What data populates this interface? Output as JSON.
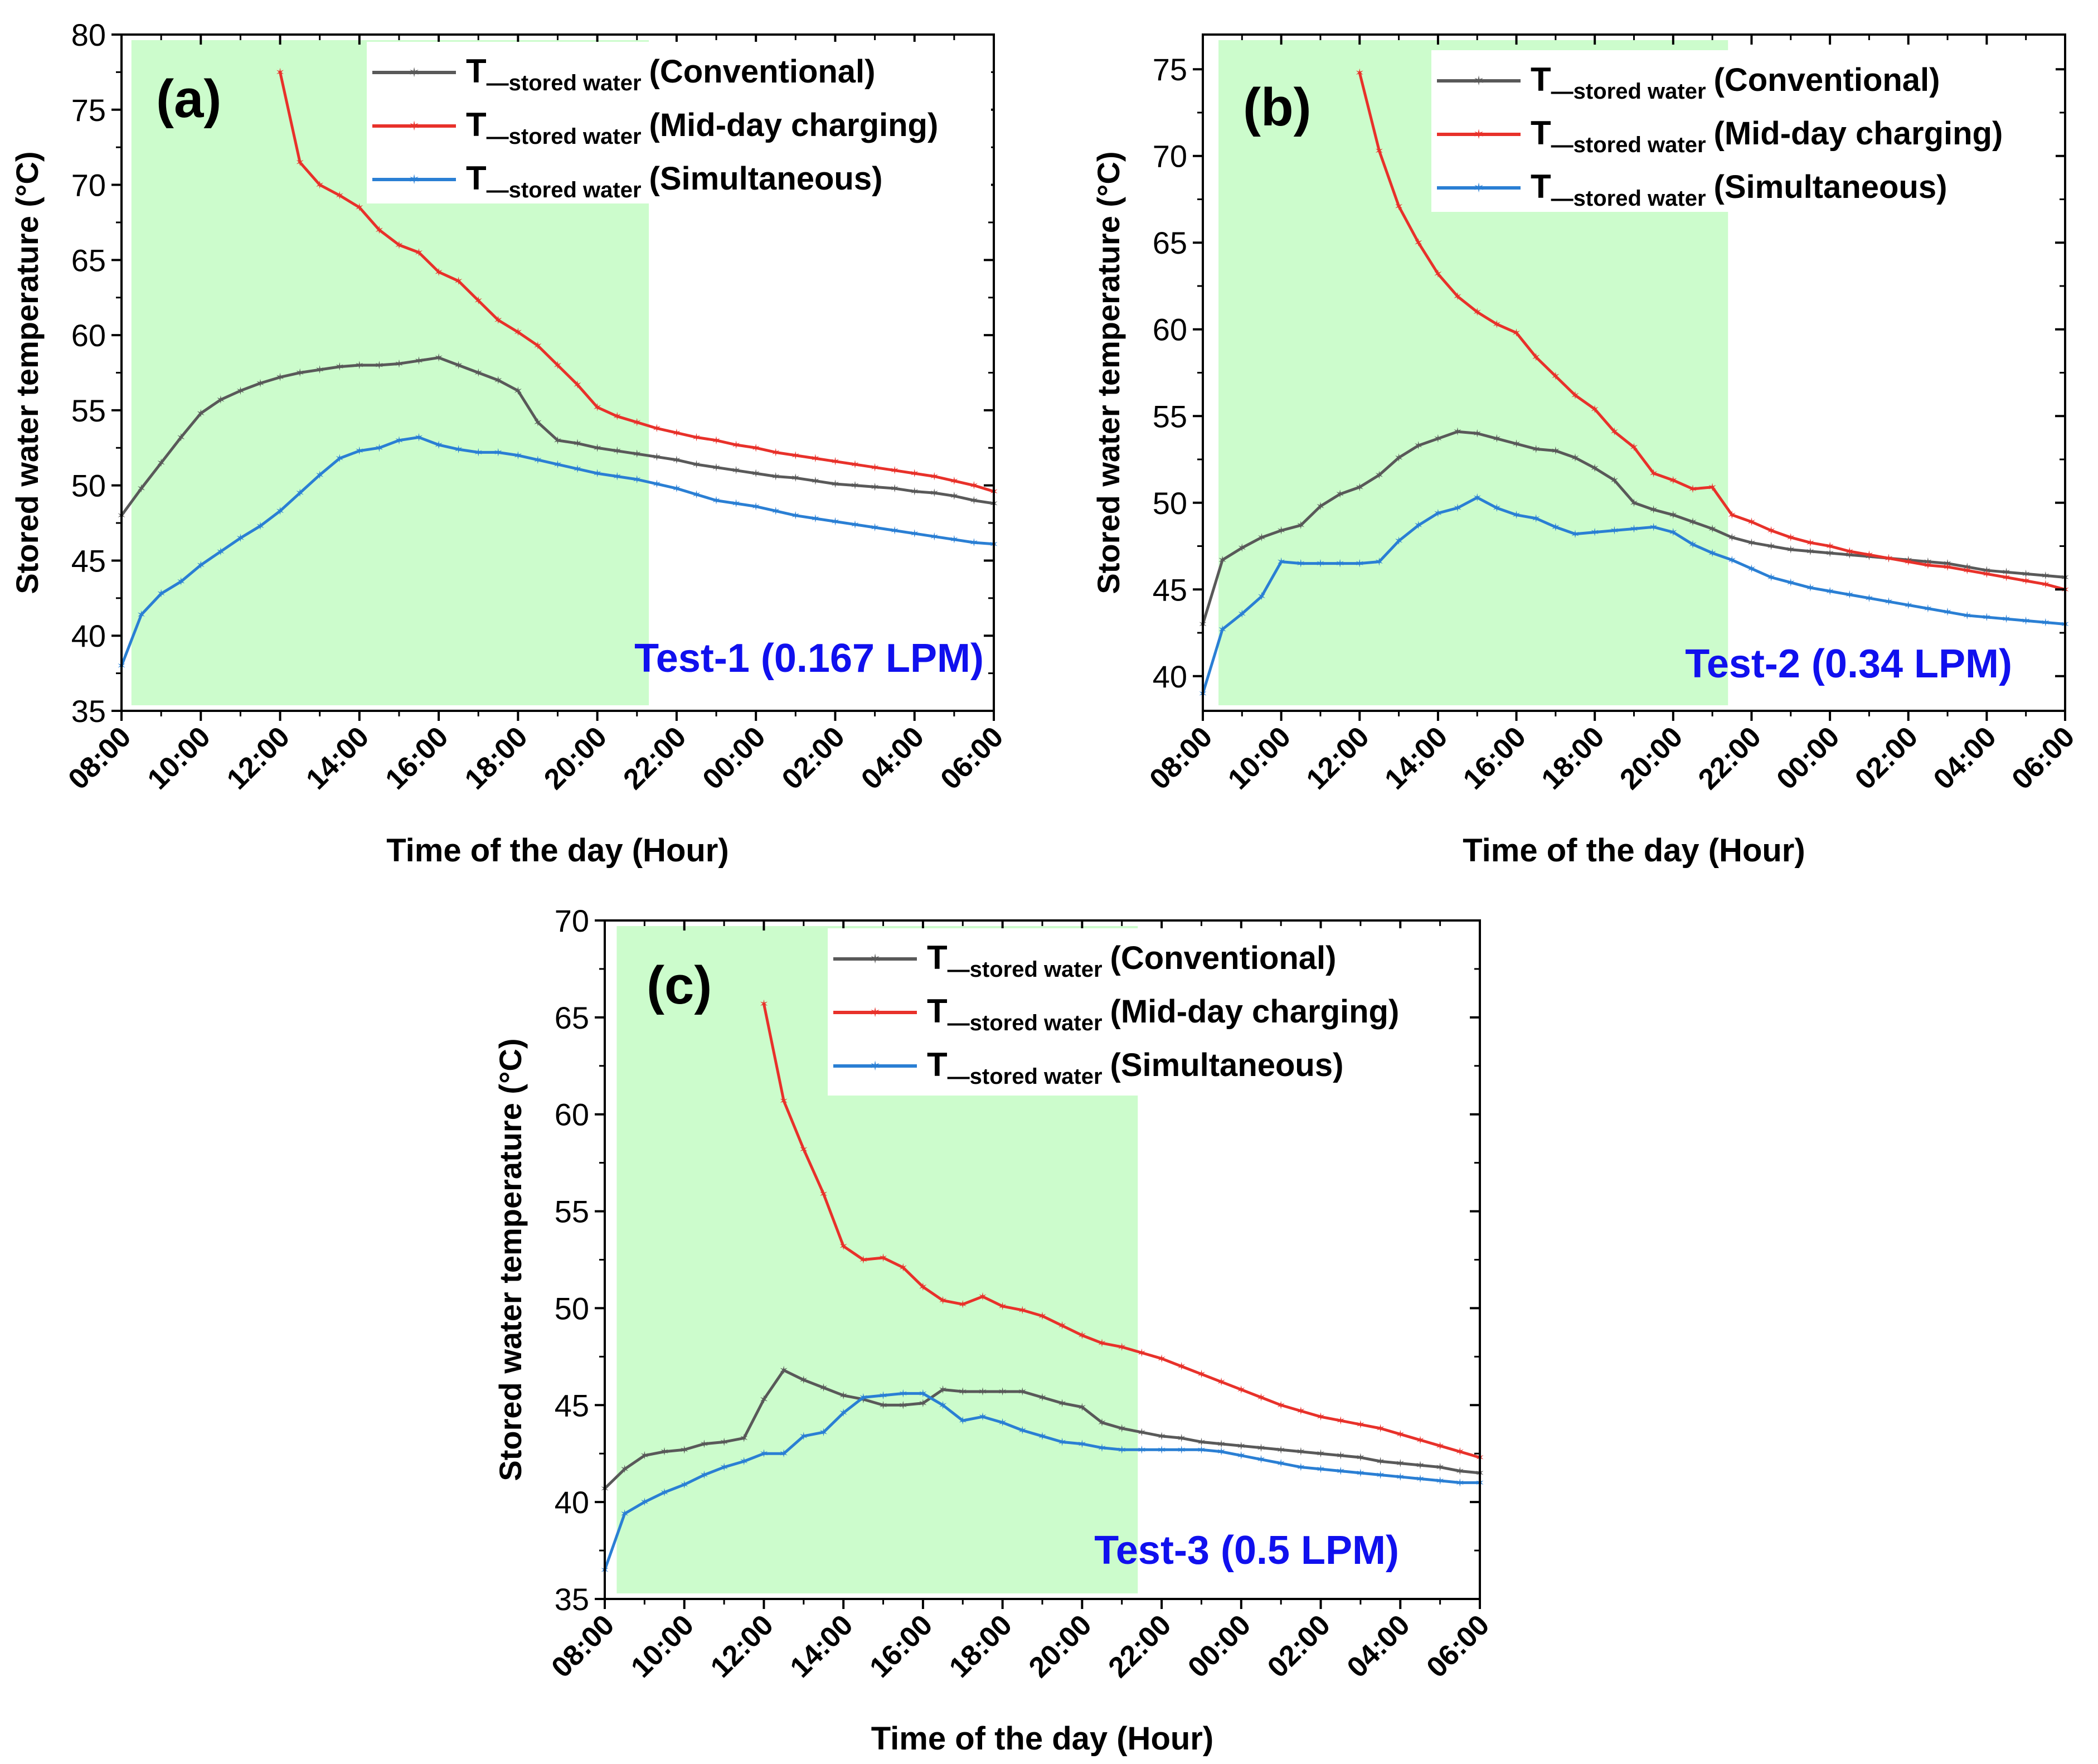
{
  "chart_data": [
    {
      "type": "line",
      "panel_label": "(a)",
      "test_label": "Test-1 (0.167 LPM)",
      "xlabel": "Time of the day (Hour)",
      "ylabel": "Stored water temperature (°C)",
      "ylim": [
        35,
        80
      ],
      "yticks": [
        35,
        40,
        45,
        50,
        55,
        60,
        65,
        70,
        75,
        80
      ],
      "xlim": [
        0,
        22
      ],
      "xtick_labels": [
        "08:00",
        "10:00",
        "12:00",
        "14:00",
        "16:00",
        "18:00",
        "20:00",
        "22:00",
        "00:00",
        "02:00",
        "04:00",
        "06:00"
      ],
      "shaded_region_hours": [
        0.25,
        13.3
      ],
      "series": [
        {
          "name_main": "T",
          "name_sub": "—stored water",
          "name_tail": "(Conventional)",
          "color": "#595959",
          "x": [
            0,
            0.5,
            1,
            1.5,
            2,
            2.5,
            3,
            3.5,
            4,
            4.5,
            5,
            5.5,
            6,
            6.5,
            7,
            7.5,
            8,
            8.5,
            9,
            9.5,
            10,
            10.5,
            11,
            11.5,
            12,
            12.5,
            13,
            13.5,
            14,
            14.5,
            15,
            15.5,
            16,
            16.5,
            17,
            17.5,
            18,
            18.5,
            19,
            19.5,
            20,
            20.5,
            21,
            21.5,
            22
          ],
          "y": [
            48,
            49.8,
            51.5,
            53.2,
            54.8,
            55.7,
            56.3,
            56.8,
            57.2,
            57.5,
            57.7,
            57.9,
            58,
            58,
            58.1,
            58.3,
            58.5,
            58,
            57.5,
            57,
            56.3,
            54.2,
            53,
            52.8,
            52.5,
            52.3,
            52.1,
            51.9,
            51.7,
            51.4,
            51.2,
            51,
            50.8,
            50.6,
            50.5,
            50.3,
            50.1,
            50,
            49.9,
            49.8,
            49.6,
            49.5,
            49.3,
            49,
            48.8
          ]
        },
        {
          "name_main": "T",
          "name_sub": "—stored water",
          "name_tail": "(Mid-day charging)",
          "color": "#e8312a",
          "x": [
            4,
            4.5,
            5,
            5.5,
            6,
            6.5,
            7,
            7.5,
            8,
            8.5,
            9,
            9.5,
            10,
            10.5,
            11,
            11.5,
            12,
            12.5,
            13,
            13.5,
            14,
            14.5,
            15,
            15.5,
            16,
            16.5,
            17,
            17.5,
            18,
            18.5,
            19,
            19.5,
            20,
            20.5,
            21,
            21.5,
            22
          ],
          "y": [
            77.5,
            71.5,
            70,
            69.3,
            68.5,
            67,
            66,
            65.5,
            64.2,
            63.6,
            62.3,
            61,
            60.2,
            59.3,
            58,
            56.7,
            55.2,
            54.6,
            54.2,
            53.8,
            53.5,
            53.2,
            53,
            52.7,
            52.5,
            52.2,
            52,
            51.8,
            51.6,
            51.4,
            51.2,
            51,
            50.8,
            50.6,
            50.3,
            50,
            49.6
          ]
        },
        {
          "name_main": "T",
          "name_sub": "—stored water",
          "name_tail": "(Simultaneous)",
          "color": "#2a7fd4",
          "x": [
            0,
            0.5,
            1,
            1.5,
            2,
            2.5,
            3,
            3.5,
            4,
            4.5,
            5,
            5.5,
            6,
            6.5,
            7,
            7.5,
            8,
            8.5,
            9,
            9.5,
            10,
            10.5,
            11,
            11.5,
            12,
            12.5,
            13,
            13.5,
            14,
            14.5,
            15,
            15.5,
            16,
            16.5,
            17,
            17.5,
            18,
            18.5,
            19,
            19.5,
            20,
            20.5,
            21,
            21.5,
            22
          ],
          "y": [
            38,
            41.4,
            42.8,
            43.6,
            44.7,
            45.6,
            46.5,
            47.3,
            48.3,
            49.5,
            50.7,
            51.8,
            52.3,
            52.5,
            53,
            53.2,
            52.7,
            52.4,
            52.2,
            52.2,
            52,
            51.7,
            51.4,
            51.1,
            50.8,
            50.6,
            50.4,
            50.1,
            49.8,
            49.4,
            49,
            48.8,
            48.6,
            48.3,
            48,
            47.8,
            47.6,
            47.4,
            47.2,
            47,
            46.8,
            46.6,
            46.4,
            46.2,
            46.1
          ]
        }
      ]
    },
    {
      "type": "line",
      "panel_label": "(b)",
      "test_label": "Test-2 (0.34 LPM)",
      "xlabel": "Time of the day (Hour)",
      "ylabel": "Stored water temperature (°C)",
      "ylim": [
        38,
        77
      ],
      "yticks": [
        40,
        45,
        50,
        55,
        60,
        65,
        70,
        75
      ],
      "xlim": [
        0,
        22
      ],
      "xtick_labels": [
        "08:00",
        "10:00",
        "12:00",
        "14:00",
        "16:00",
        "18:00",
        "20:00",
        "22:00",
        "00:00",
        "02:00",
        "04:00",
        "06:00"
      ],
      "shaded_region_hours": [
        0.4,
        13.4
      ],
      "series": [
        {
          "name_main": "T",
          "name_sub": "—stored water",
          "name_tail": "(Conventional)",
          "color": "#595959",
          "x": [
            0,
            0.5,
            1,
            1.5,
            2,
            2.5,
            3,
            3.5,
            4,
            4.5,
            5,
            5.5,
            6,
            6.5,
            7,
            7.5,
            8,
            8.5,
            9,
            9.5,
            10,
            10.5,
            11,
            11.5,
            12,
            12.5,
            13,
            13.5,
            14,
            14.5,
            15,
            15.5,
            16,
            16.5,
            17,
            17.5,
            18,
            18.5,
            19,
            19.5,
            20,
            20.5,
            21,
            21.5,
            22
          ],
          "y": [
            43,
            46.7,
            47.4,
            48,
            48.4,
            48.7,
            49.8,
            50.5,
            50.9,
            51.6,
            52.6,
            53.3,
            53.7,
            54.1,
            54,
            53.7,
            53.4,
            53.1,
            53,
            52.6,
            52,
            51.3,
            50,
            49.6,
            49.3,
            48.9,
            48.5,
            48,
            47.7,
            47.5,
            47.3,
            47.2,
            47.1,
            47,
            46.9,
            46.8,
            46.7,
            46.6,
            46.5,
            46.3,
            46.1,
            46,
            45.9,
            45.8,
            45.7
          ]
        },
        {
          "name_main": "T",
          "name_sub": "—stored water",
          "name_tail": "(Mid-day charging)",
          "color": "#e8312a",
          "x": [
            4,
            4.5,
            5,
            5.5,
            6,
            6.5,
            7,
            7.5,
            8,
            8.5,
            9,
            9.5,
            10,
            10.5,
            11,
            11.5,
            12,
            12.5,
            13,
            13.5,
            14,
            14.5,
            15,
            15.5,
            16,
            16.5,
            17,
            17.5,
            18,
            18.5,
            19,
            19.5,
            20,
            20.5,
            21,
            21.5,
            22
          ],
          "y": [
            74.8,
            70.3,
            67.1,
            65,
            63.2,
            61.9,
            61,
            60.3,
            59.8,
            58.4,
            57.3,
            56.2,
            55.4,
            54.1,
            53.2,
            51.7,
            51.3,
            50.8,
            50.9,
            49.3,
            48.9,
            48.4,
            48,
            47.7,
            47.5,
            47.2,
            47,
            46.8,
            46.6,
            46.4,
            46.3,
            46.1,
            45.9,
            45.7,
            45.5,
            45.3,
            45
          ]
        },
        {
          "name_main": "T",
          "name_sub": "—stored water",
          "name_tail": "(Simultaneous)",
          "color": "#2a7fd4",
          "x": [
            0,
            0.5,
            1,
            1.5,
            2,
            2.5,
            3,
            3.5,
            4,
            4.5,
            5,
            5.5,
            6,
            6.5,
            7,
            7.5,
            8,
            8.5,
            9,
            9.5,
            10,
            10.5,
            11,
            11.5,
            12,
            12.5,
            13,
            13.5,
            14,
            14.5,
            15,
            15.5,
            16,
            16.5,
            17,
            17.5,
            18,
            18.5,
            19,
            19.5,
            20,
            20.5,
            21,
            21.5,
            22
          ],
          "y": [
            39,
            42.7,
            43.6,
            44.6,
            46.6,
            46.5,
            46.5,
            46.5,
            46.5,
            46.6,
            47.8,
            48.7,
            49.4,
            49.7,
            50.3,
            49.7,
            49.3,
            49.1,
            48.6,
            48.2,
            48.3,
            48.4,
            48.5,
            48.6,
            48.3,
            47.6,
            47.1,
            46.7,
            46.2,
            45.7,
            45.4,
            45.1,
            44.9,
            44.7,
            44.5,
            44.3,
            44.1,
            43.9,
            43.7,
            43.5,
            43.4,
            43.3,
            43.2,
            43.1,
            43
          ]
        }
      ]
    },
    {
      "type": "line",
      "panel_label": "(c)",
      "test_label": "Test-3 (0.5 LPM)",
      "xlabel": "Time of the day (Hour)",
      "ylabel": "Stored water temperature (°C)",
      "ylim": [
        35,
        70
      ],
      "yticks": [
        35,
        40,
        45,
        50,
        55,
        60,
        65,
        70
      ],
      "xlim": [
        0,
        22
      ],
      "xtick_labels": [
        "08:00",
        "10:00",
        "12:00",
        "14:00",
        "16:00",
        "18:00",
        "20:00",
        "22:00",
        "00:00",
        "02:00",
        "04:00",
        "06:00"
      ],
      "shaded_region_hours": [
        0.3,
        13.4
      ],
      "series": [
        {
          "name_main": "T",
          "name_sub": "—stored water",
          "name_tail": "(Conventional)",
          "color": "#595959",
          "x": [
            0,
            0.5,
            1,
            1.5,
            2,
            2.5,
            3,
            3.5,
            4,
            4.5,
            5,
            5.5,
            6,
            6.5,
            7,
            7.5,
            8,
            8.5,
            9,
            9.5,
            10,
            10.5,
            11,
            11.5,
            12,
            12.5,
            13,
            13.5,
            14,
            14.5,
            15,
            15.5,
            16,
            16.5,
            17,
            17.5,
            18,
            18.5,
            19,
            19.5,
            20,
            20.5,
            21,
            21.5,
            22
          ],
          "y": [
            40.7,
            41.7,
            42.4,
            42.6,
            42.7,
            43,
            43.1,
            43.3,
            45.3,
            46.8,
            46.3,
            45.9,
            45.5,
            45.3,
            45,
            45,
            45.1,
            45.8,
            45.7,
            45.7,
            45.7,
            45.7,
            45.4,
            45.1,
            44.9,
            44.1,
            43.8,
            43.6,
            43.4,
            43.3,
            43.1,
            43,
            42.9,
            42.8,
            42.7,
            42.6,
            42.5,
            42.4,
            42.3,
            42.1,
            42,
            41.9,
            41.8,
            41.6,
            41.5
          ]
        },
        {
          "name_main": "T",
          "name_sub": "—stored water",
          "name_tail": "(Mid-day charging)",
          "color": "#e8312a",
          "x": [
            4,
            4.5,
            5,
            5.5,
            6,
            6.5,
            7,
            7.5,
            8,
            8.5,
            9,
            9.5,
            10,
            10.5,
            11,
            11.5,
            12,
            12.5,
            13,
            13.5,
            14,
            14.5,
            15,
            15.5,
            16,
            16.5,
            17,
            17.5,
            18,
            18.5,
            19,
            19.5,
            20,
            20.5,
            21,
            21.5,
            22
          ],
          "y": [
            65.7,
            60.7,
            58.2,
            55.9,
            53.2,
            52.5,
            52.6,
            52.1,
            51.1,
            50.4,
            50.2,
            50.6,
            50.1,
            49.9,
            49.6,
            49.1,
            48.6,
            48.2,
            48,
            47.7,
            47.4,
            47,
            46.6,
            46.2,
            45.8,
            45.4,
            45,
            44.7,
            44.4,
            44.2,
            44,
            43.8,
            43.5,
            43.2,
            42.9,
            42.6,
            42.3
          ]
        },
        {
          "name_main": "T",
          "name_sub": "—stored water",
          "name_tail": "(Simultaneous)",
          "color": "#2a7fd4",
          "x": [
            0,
            0.5,
            1,
            1.5,
            2,
            2.5,
            3,
            3.5,
            4,
            4.5,
            5,
            5.5,
            6,
            6.5,
            7,
            7.5,
            8,
            8.5,
            9,
            9.5,
            10,
            10.5,
            11,
            11.5,
            12,
            12.5,
            13,
            13.5,
            14,
            14.5,
            15,
            15.5,
            16,
            16.5,
            17,
            17.5,
            18,
            18.5,
            19,
            19.5,
            20,
            20.5,
            21,
            21.5,
            22
          ],
          "y": [
            36.5,
            39.4,
            40,
            40.5,
            40.9,
            41.4,
            41.8,
            42.1,
            42.5,
            42.5,
            43.4,
            43.6,
            44.6,
            45.4,
            45.5,
            45.6,
            45.6,
            45,
            44.2,
            44.4,
            44.1,
            43.7,
            43.4,
            43.1,
            43,
            42.8,
            42.7,
            42.7,
            42.7,
            42.7,
            42.7,
            42.6,
            42.4,
            42.2,
            42,
            41.8,
            41.7,
            41.6,
            41.5,
            41.4,
            41.3,
            41.2,
            41.1,
            41,
            41
          ]
        }
      ]
    }
  ]
}
